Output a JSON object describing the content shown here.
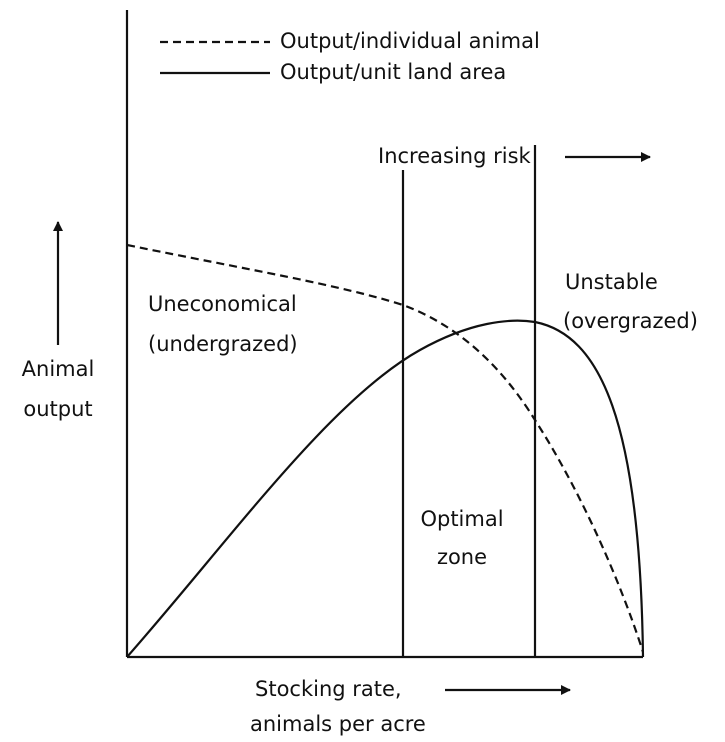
{
  "legend": {
    "dashed": "Output/individual animal",
    "solid": "Output/unit land area"
  },
  "y_axis_label": [
    "Animal",
    "output"
  ],
  "x_axis_label": [
    "Stocking rate,",
    "animals per acre"
  ],
  "risk_label": "Increasing risk",
  "regions": {
    "left": [
      "Uneconomical",
      "(undergrazed)"
    ],
    "middle": [
      "Optimal",
      "zone"
    ],
    "right": [
      "Unstable",
      "(overgrazed)"
    ]
  }
}
